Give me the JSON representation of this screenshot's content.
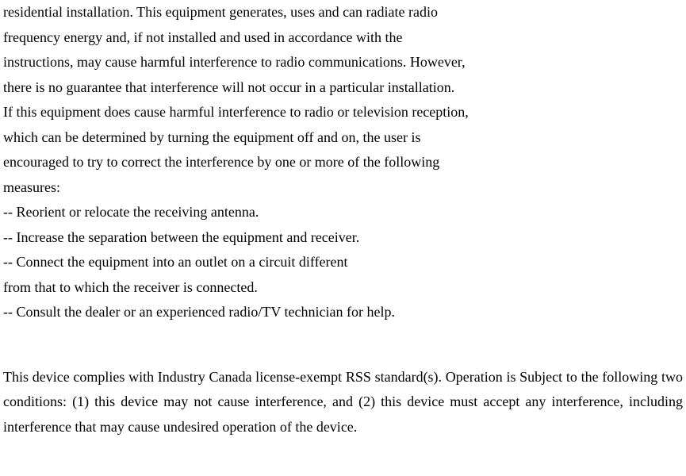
{
  "top_section": {
    "line1": "residential installation. This equipment generates, uses and can radiate radio",
    "line2": "frequency energy and, if not installed and used in accordance with the",
    "line3": "instructions, may cause harmful interference to radio communications. However,",
    "line4": "there is no guarantee that interference will not occur in a particular installation.",
    "line5": "If this equipment does cause harmful interference to radio or television reception,",
    "line6": "which can be determined by turning the equipment off and on, the user is",
    "line7": "encouraged to try to correct the interference by one or more of the following",
    "line8": "measures:",
    "line9": "-- Reorient or relocate the receiving antenna.",
    "line10": "-- Increase the separation between the equipment and receiver.",
    "line11": "-- Connect the equipment into an outlet on a circuit different",
    "line12": "from that to which the receiver is connected.",
    "line13": "-- Consult the dealer or an experienced radio/TV technician for help."
  },
  "bottom_section": {
    "paragraph": "This device complies with Industry Canada license-exempt RSS standard(s). Operation is Subject to the following two conditions: (1) this device may not cause interference, and (2) this device must accept any interference, including interference that may cause undesired operation of the device."
  }
}
